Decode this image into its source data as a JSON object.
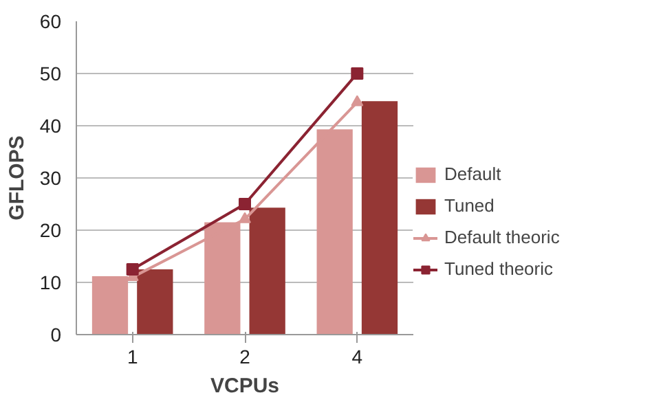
{
  "chart_data": {
    "type": "bar",
    "xlabel": "VCPUs",
    "ylabel": "GFLOPS",
    "categories": [
      "1",
      "2",
      "4"
    ],
    "ylim": [
      0,
      60
    ],
    "yticks": [
      0,
      10,
      20,
      30,
      40,
      50,
      60
    ],
    "grid": "y",
    "legend": "right",
    "series": [
      {
        "name": "Default",
        "color": "#d99694",
        "values": [
          11.2,
          21.5,
          39.3
        ]
      },
      {
        "name": "Tuned",
        "color": "#953735",
        "values": [
          12.5,
          24.3,
          44.7
        ]
      },
      {
        "name": "Default theoric",
        "type": "line",
        "color": "#d99694",
        "marker": "triangle",
        "values": [
          11,
          22.1,
          44.5
        ]
      },
      {
        "name": "Tuned theoric",
        "type": "line",
        "color": "#8b2332",
        "marker": "square",
        "values": [
          12.5,
          25,
          50
        ]
      }
    ]
  }
}
